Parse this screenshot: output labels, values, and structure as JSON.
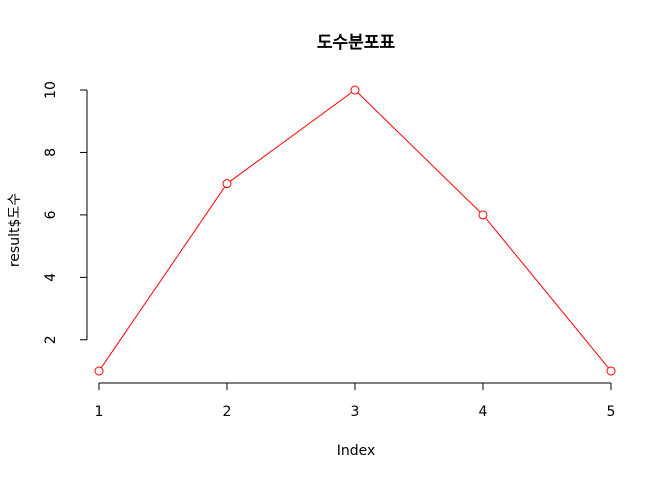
{
  "chart_data": {
    "type": "line",
    "title": "도수분포표",
    "xlabel": "Index",
    "ylabel": "result$도수",
    "x": [
      1,
      2,
      3,
      4,
      5
    ],
    "series": [
      {
        "values": [
          1,
          7,
          10,
          6,
          1
        ],
        "color": "#ff0000",
        "marker": "open-circle"
      }
    ],
    "xlim": [
      1,
      5
    ],
    "ylim": [
      1,
      10
    ],
    "xticks": [
      "1",
      "2",
      "3",
      "4",
      "5"
    ],
    "yticks": [
      "2",
      "4",
      "6",
      "8",
      "10"
    ],
    "grid": false
  }
}
